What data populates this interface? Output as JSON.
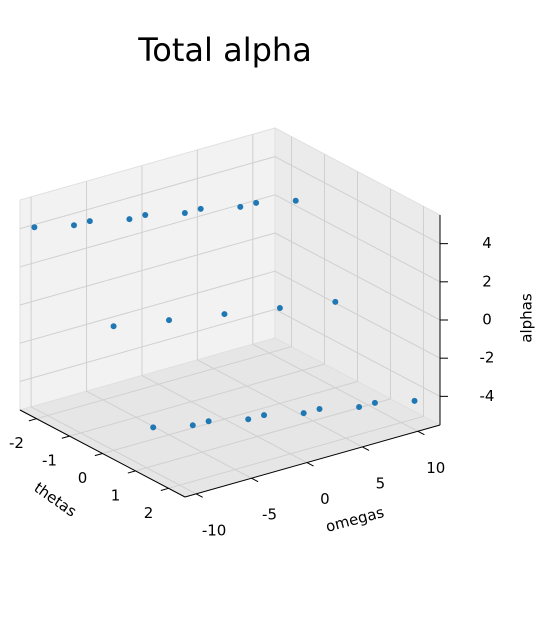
{
  "chart_data": {
    "type": "scatter3d",
    "title": "Total alpha",
    "x_label": "thetas",
    "y_label": "omegas",
    "z_label": "alphas",
    "xlim": [
      -2.5,
      2.5
    ],
    "xticks": [
      -2,
      -1,
      0,
      1,
      2
    ],
    "ylim": [
      -11,
      12
    ],
    "yticks": [
      -10,
      -5,
      0,
      5,
      10
    ],
    "zlim": [
      -5.5,
      5.5
    ],
    "zticks": [
      -4,
      -2,
      0,
      2,
      4
    ],
    "grid": true,
    "series": [
      {
        "color": "#1f77b4",
        "x": [
          -2.4,
          -2.4,
          -2.4,
          -2.4,
          -2.4,
          -1.2,
          -1.2,
          -1.2,
          -1.2,
          -1.2,
          0,
          0,
          0,
          0,
          0,
          1.2,
          1.2,
          1.2,
          1.2,
          1.2,
          2.4,
          2.4,
          2.4,
          2.4,
          2.4
        ],
        "y": [
          -10,
          -5,
          0,
          5,
          10,
          -10,
          -5,
          0,
          5,
          10,
          -10,
          -5,
          0,
          5,
          10,
          -10,
          -5,
          0,
          5,
          10,
          -10,
          -5,
          0,
          5,
          10
        ],
        "z": [
          4.0,
          3.5,
          3.0,
          2.5,
          2.0,
          5.2,
          4.7,
          4.2,
          3.7,
          3.2,
          1.0,
          0.5,
          0,
          -0.5,
          -1.0,
          -3.2,
          -3.7,
          -4.2,
          -4.7,
          -5.2,
          -2.0,
          -2.5,
          -3.0,
          -3.5,
          -4.0
        ]
      }
    ]
  }
}
